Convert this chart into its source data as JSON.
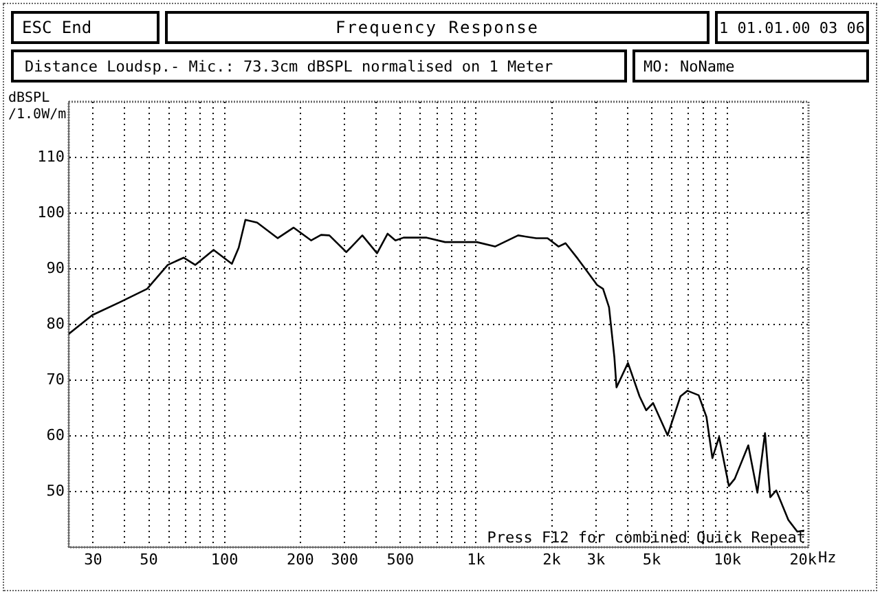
{
  "chart_data": {
    "type": "line",
    "title": "Frequency Response",
    "subtitle": "Distance Loudsp.- Mic.: 73.3cm dBSPL normalised on 1 Meter",
    "ylabel": "dBSPL /1.0W/m",
    "annotations": [
      "ESC End",
      "1 01.01.00 03 06",
      "MO: NoName",
      "Press F12 for combined Quick Repeat"
    ],
    "xlim": [
      24,
      21000
    ],
    "ylim": [
      40,
      120
    ],
    "xticks": [
      {
        "value": 30,
        "label": "30"
      },
      {
        "value": 40,
        "label": null
      },
      {
        "value": 50,
        "label": "50"
      },
      {
        "value": 60,
        "label": null
      },
      {
        "value": 70,
        "label": null
      },
      {
        "value": 80,
        "label": null
      },
      {
        "value": 90,
        "label": null
      },
      {
        "value": 100,
        "label": "100"
      },
      {
        "value": 200,
        "label": "200"
      },
      {
        "value": 300,
        "label": "300"
      },
      {
        "value": 400,
        "label": null
      },
      {
        "value": 500,
        "label": "500"
      },
      {
        "value": 600,
        "label": null
      },
      {
        "value": 700,
        "label": null
      },
      {
        "value": 800,
        "label": null
      },
      {
        "value": 900,
        "label": null
      },
      {
        "value": 1000,
        "label": "1k"
      },
      {
        "value": 2000,
        "label": "2k"
      },
      {
        "value": 3000,
        "label": "3k"
      },
      {
        "value": 4000,
        "label": null
      },
      {
        "value": 5000,
        "label": "5k"
      },
      {
        "value": 6000,
        "label": null
      },
      {
        "value": 7000,
        "label": null
      },
      {
        "value": 8000,
        "label": null
      },
      {
        "value": 9000,
        "label": null
      },
      {
        "value": 10000,
        "label": "10k"
      },
      {
        "value": 20000,
        "label": "20k"
      }
    ],
    "xlabel": "Hz",
    "yticks": [
      50,
      60,
      70,
      80,
      90,
      100,
      110
    ],
    "log": "x",
    "grid": true,
    "legend": false,
    "marker": "none",
    "line_style": "solid",
    "series": [
      {
        "color": "#000000",
        "x": [
          24,
          29.8,
          38.3,
          49.2,
          59.4,
          68.8,
          76.5,
          90.4,
          106.9,
          113.8,
          121,
          134.7,
          162.7,
          188,
          221,
          242,
          261,
          305,
          353,
          404,
          445,
          478,
          515,
          636,
          753,
          1007,
          1190,
          1470,
          1735,
          1925,
          2130,
          2270,
          2540,
          2760,
          3030,
          3200,
          3380,
          3550,
          3620,
          4020,
          4470,
          4750,
          5060,
          5780,
          6500,
          6930,
          7680,
          8250,
          8710,
          9260,
          10130,
          10690,
          12100,
          13150,
          14100,
          14800,
          15630,
          17460,
          18950,
          20200
        ],
        "values": [
          78.3,
          81.7,
          84,
          86.4,
          90.7,
          92,
          90.7,
          93.4,
          90.9,
          93.8,
          98.8,
          98.3,
          95.5,
          97.4,
          95.1,
          96.1,
          96,
          93,
          96,
          92.8,
          96.3,
          95.1,
          95.6,
          95.6,
          94.8,
          94.8,
          94,
          96,
          95.5,
          95.5,
          94,
          94.6,
          91.8,
          89.6,
          87.1,
          86.4,
          83.1,
          74.1,
          68.7,
          73.1,
          67.1,
          64.6,
          65.9,
          60.1,
          67.1,
          68.1,
          67.3,
          63.4,
          56,
          59.8,
          51,
          52.3,
          58.3,
          49.8,
          60.5,
          49,
          50.2,
          44.9,
          42.8,
          43
        ]
      }
    ]
  }
}
